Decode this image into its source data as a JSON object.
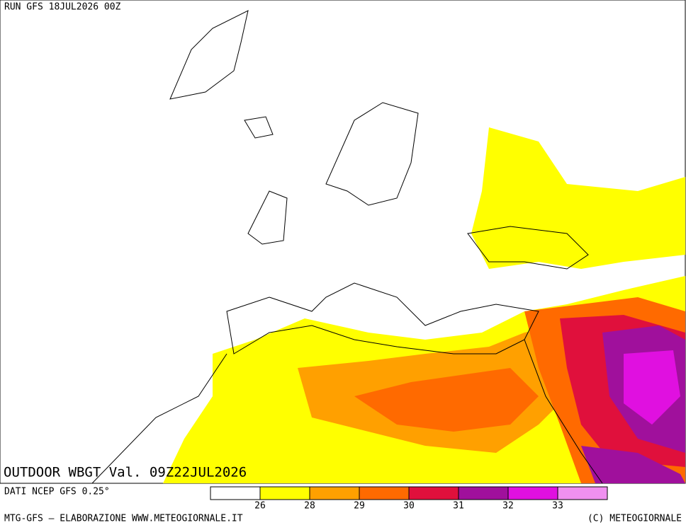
{
  "header": {
    "run": "RUN GFS 18JUL2026 00Z",
    "product": "OUTDOOR WBGT Val. 09Z22JUL2026"
  },
  "legend": {
    "source": "DATI NCEP GFS 0.25°",
    "colors": [
      "#ffffff",
      "#ffff00",
      "#ffa000",
      "#ff6a00",
      "#e0103c",
      "#a0109c",
      "#e010e0",
      "#f090f0"
    ],
    "ticks": [
      26,
      28,
      29,
      30,
      31,
      32,
      33
    ]
  },
  "footer": {
    "credit": "MTG-GFS — ELABORAZIONE WWW.METEOGIORNALE.IT",
    "copyright": "(C) METEOGIORNALE"
  }
}
